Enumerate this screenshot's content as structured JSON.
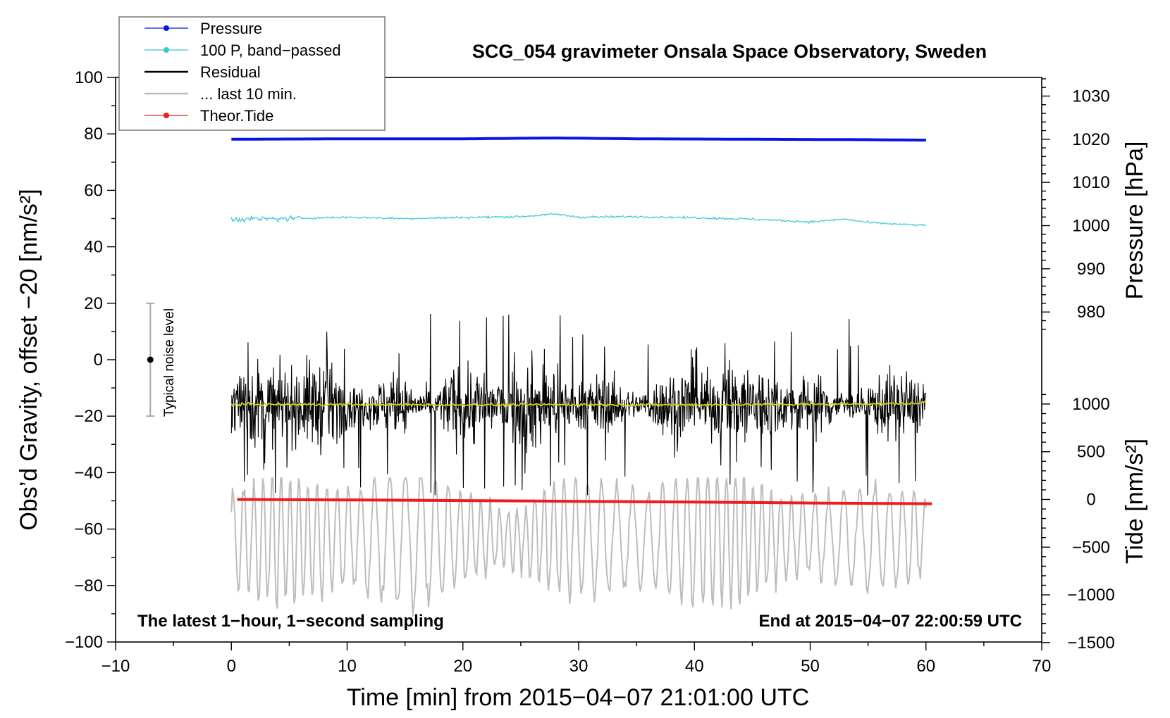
{
  "chart_data": {
    "type": "line",
    "title": "SCG_054 gravimeter Onsala Space Observatory, Sweden",
    "xlabel": "Time [min] from 2015−04−07 21:01:00 UTC",
    "ylabel_left": "Obs’d Gravity, offset −20 [nm/s²]",
    "ylabel_right_top": "Pressure [hPa]",
    "ylabel_right_bottom": "Tide [nm/s²]",
    "xlim": [
      -10,
      70
    ],
    "ylim_left": [
      -100,
      100
    ],
    "x_ticks": [
      -10,
      0,
      10,
      20,
      30,
      40,
      50,
      60,
      70
    ],
    "x_tick_labels": [
      "−10",
      "0",
      "10",
      "20",
      "30",
      "40",
      "50",
      "60",
      "70"
    ],
    "y_left_ticks": [
      100,
      80,
      60,
      40,
      20,
      0,
      -20,
      -40,
      -60,
      -80,
      -100
    ],
    "y_left_tick_labels": [
      "100",
      "80",
      "60",
      "40",
      "20",
      "0",
      "−20",
      "−40",
      "−60",
      "−80",
      "−100"
    ],
    "pressure_axis": {
      "ticks": [
        1030,
        1020,
        1010,
        1000,
        990,
        980
      ],
      "tick_labels": [
        "1030",
        "1020",
        "1010",
        "1000",
        "990",
        "980"
      ],
      "left_value_at_1000": 47.5,
      "left_units_per_hpa": 1.53
    },
    "tide_axis": {
      "ticks": [
        1000,
        500,
        0,
        -500,
        -1000,
        -1500
      ],
      "tick_labels": [
        "1000",
        "500",
        "0",
        "−500",
        "−1000",
        "−1500"
      ],
      "left_value_at_0": -49.5,
      "left_units_per_500": 16.9
    },
    "series": [
      {
        "name": "Pressure",
        "legend_label": "Pressure",
        "color": "#0a14e6",
        "axis": "pressure",
        "x": [
          0,
          10,
          20,
          28,
          35,
          45,
          55,
          60
        ],
        "values": [
          1020.0,
          1020.1,
          1020.1,
          1020.3,
          1020.1,
          1020.0,
          1019.9,
          1019.8
        ]
      },
      {
        "name": "100 P, band-passed",
        "legend_label": "100 P, band−passed",
        "color": "#35c8d0",
        "axis": "left",
        "x": [
          0,
          5,
          10,
          15,
          20,
          25,
          28,
          30,
          35,
          40,
          45,
          50,
          53,
          55,
          58,
          60
        ],
        "values": [
          49.8,
          50.0,
          50.5,
          50.0,
          50.4,
          50.7,
          51.6,
          50.5,
          50.7,
          50.3,
          49.8,
          48.8,
          49.8,
          48.6,
          47.9,
          47.6
        ]
      },
      {
        "name": "Residual",
        "legend_label": "Residual",
        "color": "#000000",
        "axis": "left",
        "mean": -16,
        "spread": [
          -48,
          18
        ],
        "x_range": [
          0,
          60
        ]
      },
      {
        "name": "... last 10 min.",
        "legend_label": "... last 10 min.",
        "color": "#bdbdbd",
        "axis": "left",
        "mean": -63,
        "spread": [
          -95,
          -42
        ],
        "x_range": [
          0,
          60
        ]
      },
      {
        "name": "Theor.Tide",
        "legend_label": "Theor.Tide",
        "color": "#ee1c1c",
        "axis": "tide",
        "x": [
          0.5,
          10,
          20,
          30,
          40,
          50,
          60.5
        ],
        "values": [
          0,
          -5,
          -12,
          -20,
          -28,
          -38,
          -45
        ]
      },
      {
        "name": "Residual smoothed",
        "color": "#d8d020",
        "axis": "left",
        "x": [
          0,
          10,
          20,
          30,
          40,
          50,
          59.5,
          60
        ],
        "values": [
          -15.8,
          -15.9,
          -16.0,
          -15.9,
          -16.0,
          -15.8,
          -15.5,
          -14.5
        ]
      }
    ],
    "noise_bar": {
      "label": "Typical noise level",
      "x": -7,
      "center": 0,
      "range": [
        -20,
        20
      ]
    },
    "annotations": {
      "bottom_left": "The latest 1−hour, 1−second sampling",
      "bottom_right": "End at 2015−04−07 22:00:59 UTC"
    }
  }
}
